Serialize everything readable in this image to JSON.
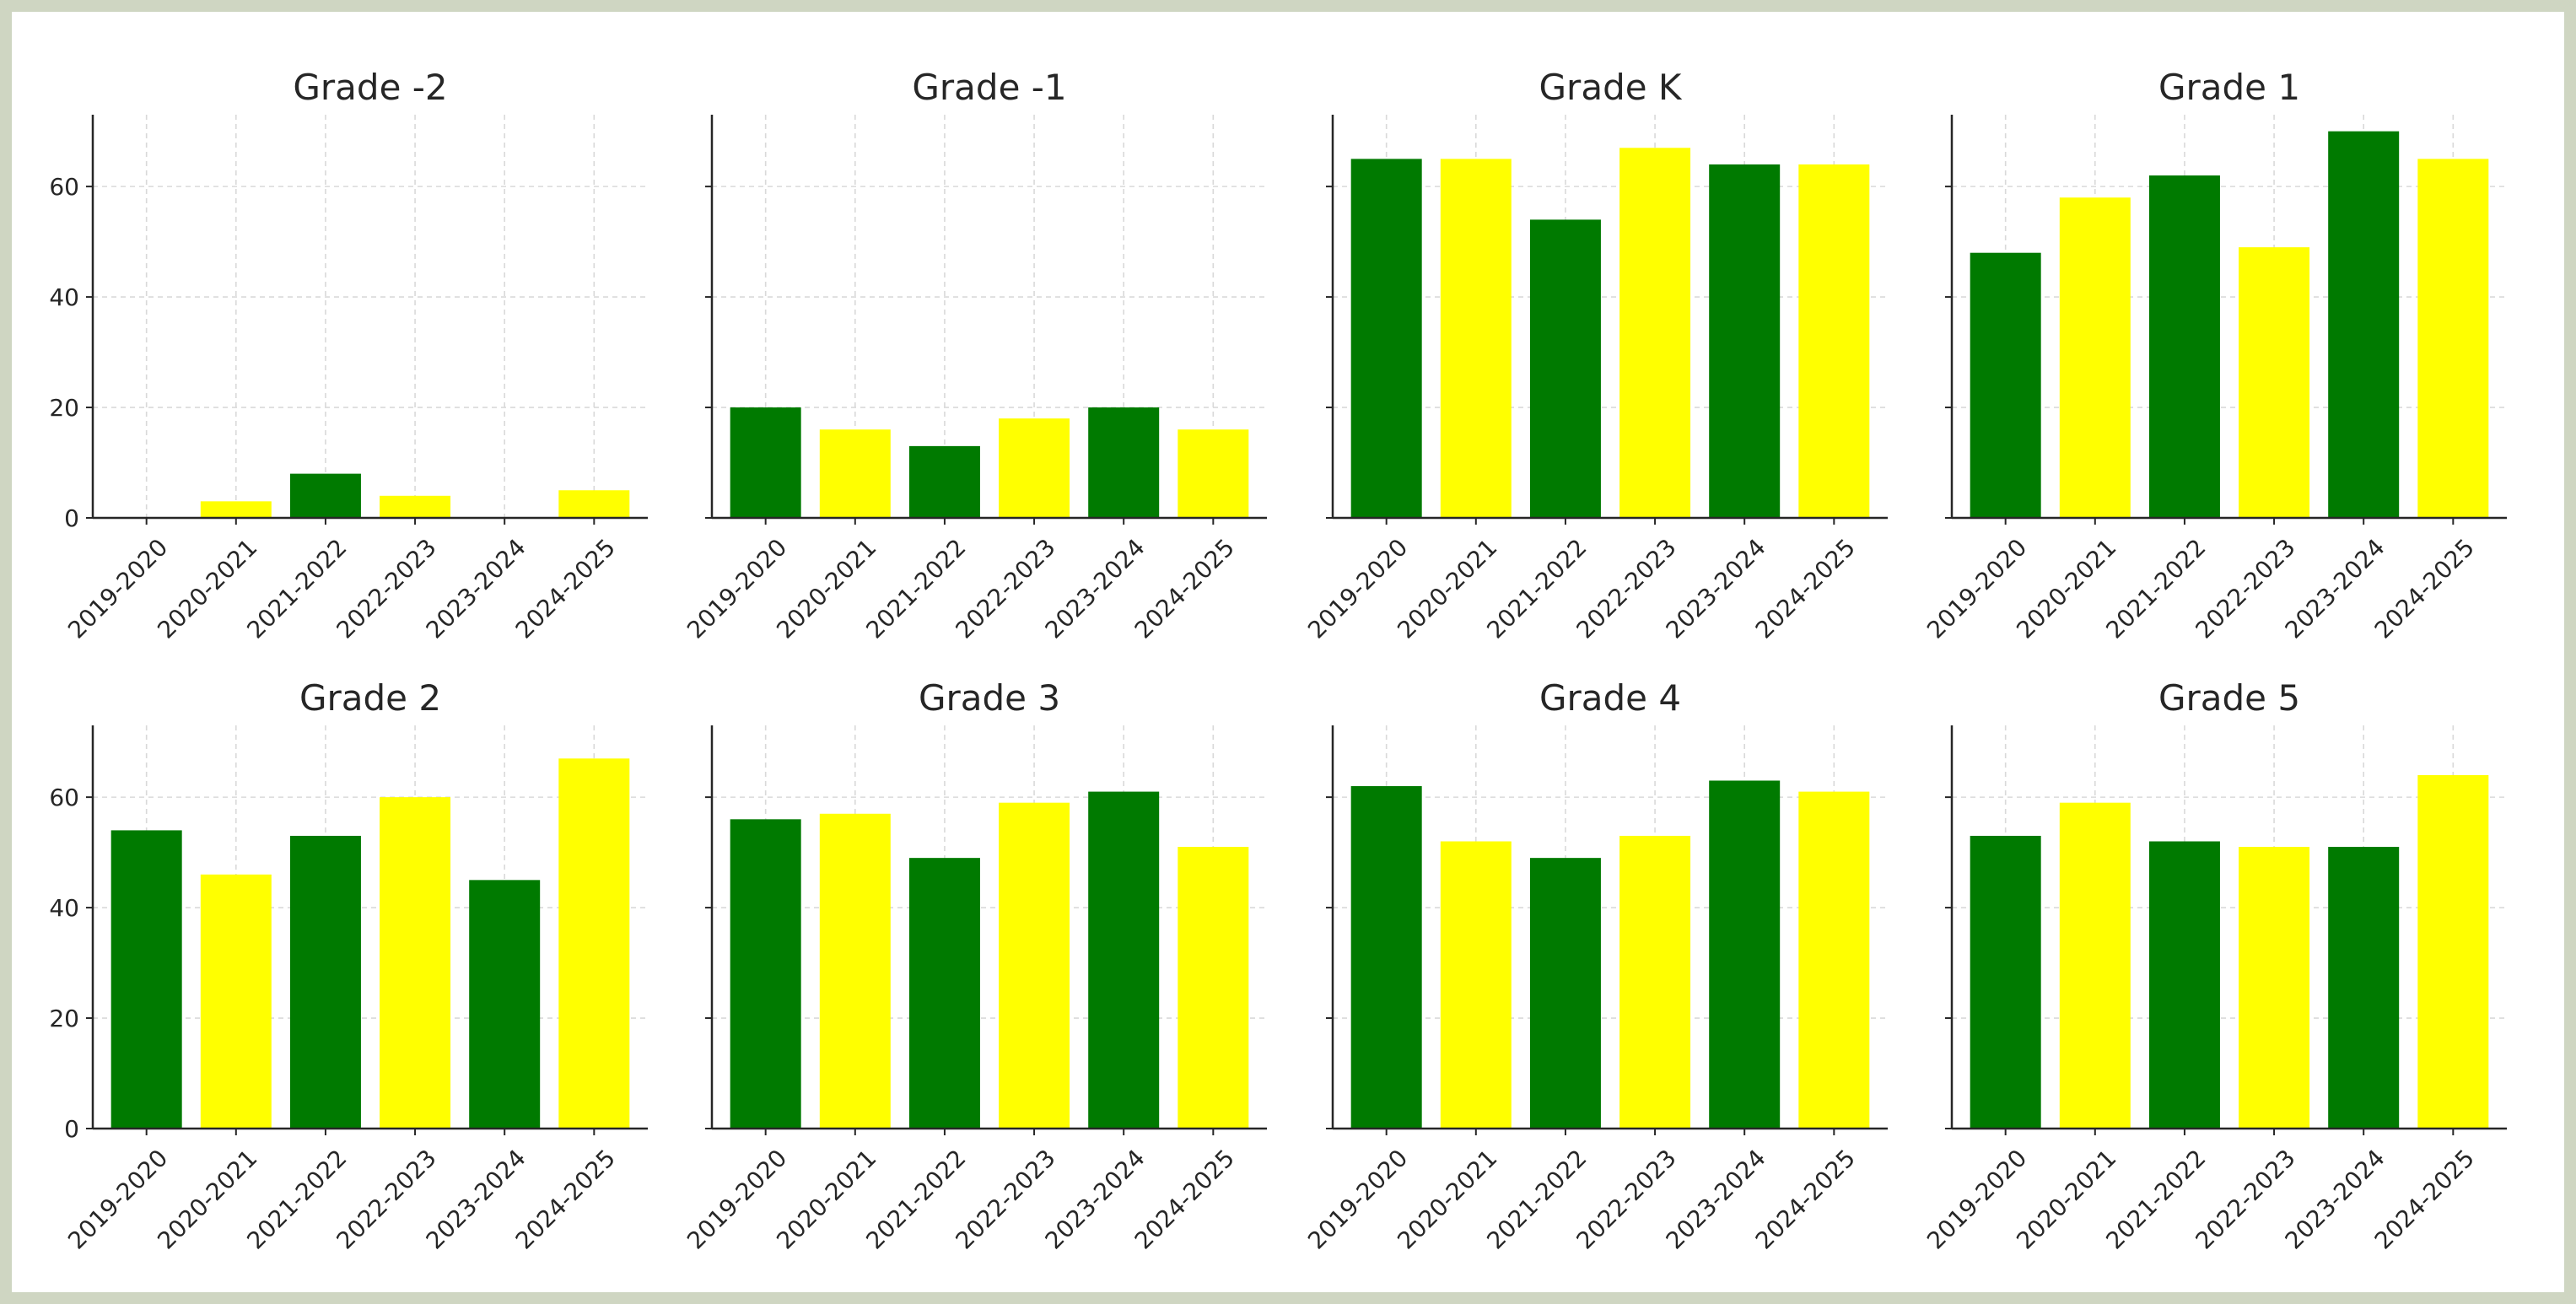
{
  "colors": {
    "green": "#007a00",
    "yellow": "#ffff00",
    "axis": "#262626",
    "grid": "#d9d9d9"
  },
  "chart_data": [
    {
      "type": "bar",
      "title": "Grade -2",
      "categories": [
        "2019-2020",
        "2020-2021",
        "2021-2022",
        "2022-2023",
        "2023-2024",
        "2024-2025"
      ],
      "values": [
        0,
        3,
        8,
        4,
        0,
        5
      ],
      "bar_colors": [
        "green",
        "yellow",
        "green",
        "yellow",
        "green",
        "yellow"
      ],
      "ylim": [
        0,
        73
      ],
      "yticks": [
        0,
        20,
        40,
        60
      ],
      "grid": true
    },
    {
      "type": "bar",
      "title": "Grade -1",
      "categories": [
        "2019-2020",
        "2020-2021",
        "2021-2022",
        "2022-2023",
        "2023-2024",
        "2024-2025"
      ],
      "values": [
        20,
        16,
        13,
        18,
        20,
        16
      ],
      "bar_colors": [
        "green",
        "yellow",
        "green",
        "yellow",
        "green",
        "yellow"
      ],
      "ylim": [
        0,
        73
      ],
      "yticks": [
        0,
        20,
        40,
        60
      ],
      "grid": true
    },
    {
      "type": "bar",
      "title": "Grade K",
      "categories": [
        "2019-2020",
        "2020-2021",
        "2021-2022",
        "2022-2023",
        "2023-2024",
        "2024-2025"
      ],
      "values": [
        65,
        65,
        54,
        67,
        64,
        64
      ],
      "bar_colors": [
        "green",
        "yellow",
        "green",
        "yellow",
        "green",
        "yellow"
      ],
      "ylim": [
        0,
        73
      ],
      "yticks": [
        0,
        20,
        40,
        60
      ],
      "grid": true
    },
    {
      "type": "bar",
      "title": "Grade 1",
      "categories": [
        "2019-2020",
        "2020-2021",
        "2021-2022",
        "2022-2023",
        "2023-2024",
        "2024-2025"
      ],
      "values": [
        48,
        58,
        62,
        49,
        70,
        65
      ],
      "bar_colors": [
        "green",
        "yellow",
        "green",
        "yellow",
        "green",
        "yellow"
      ],
      "ylim": [
        0,
        73
      ],
      "yticks": [
        0,
        20,
        40,
        60
      ],
      "grid": true
    },
    {
      "type": "bar",
      "title": "Grade 2",
      "categories": [
        "2019-2020",
        "2020-2021",
        "2021-2022",
        "2022-2023",
        "2023-2024",
        "2024-2025"
      ],
      "values": [
        54,
        46,
        53,
        60,
        45,
        67
      ],
      "bar_colors": [
        "green",
        "yellow",
        "green",
        "yellow",
        "green",
        "yellow"
      ],
      "ylim": [
        0,
        73
      ],
      "yticks": [
        0,
        20,
        40,
        60
      ],
      "grid": true
    },
    {
      "type": "bar",
      "title": "Grade 3",
      "categories": [
        "2019-2020",
        "2020-2021",
        "2021-2022",
        "2022-2023",
        "2023-2024",
        "2024-2025"
      ],
      "values": [
        56,
        57,
        49,
        59,
        61,
        51
      ],
      "bar_colors": [
        "green",
        "yellow",
        "green",
        "yellow",
        "green",
        "yellow"
      ],
      "ylim": [
        0,
        73
      ],
      "yticks": [
        0,
        20,
        40,
        60
      ],
      "grid": true
    },
    {
      "type": "bar",
      "title": "Grade 4",
      "categories": [
        "2019-2020",
        "2020-2021",
        "2021-2022",
        "2022-2023",
        "2023-2024",
        "2024-2025"
      ],
      "values": [
        62,
        52,
        49,
        53,
        63,
        61
      ],
      "bar_colors": [
        "green",
        "yellow",
        "green",
        "yellow",
        "green",
        "yellow"
      ],
      "ylim": [
        0,
        73
      ],
      "yticks": [
        0,
        20,
        40,
        60
      ],
      "grid": true
    },
    {
      "type": "bar",
      "title": "Grade 5",
      "categories": [
        "2019-2020",
        "2020-2021",
        "2021-2022",
        "2022-2023",
        "2023-2024",
        "2024-2025"
      ],
      "values": [
        53,
        59,
        52,
        51,
        51,
        64
      ],
      "bar_colors": [
        "green",
        "yellow",
        "green",
        "yellow",
        "green",
        "yellow"
      ],
      "ylim": [
        0,
        73
      ],
      "yticks": [
        0,
        20,
        40,
        60
      ],
      "grid": true
    }
  ]
}
